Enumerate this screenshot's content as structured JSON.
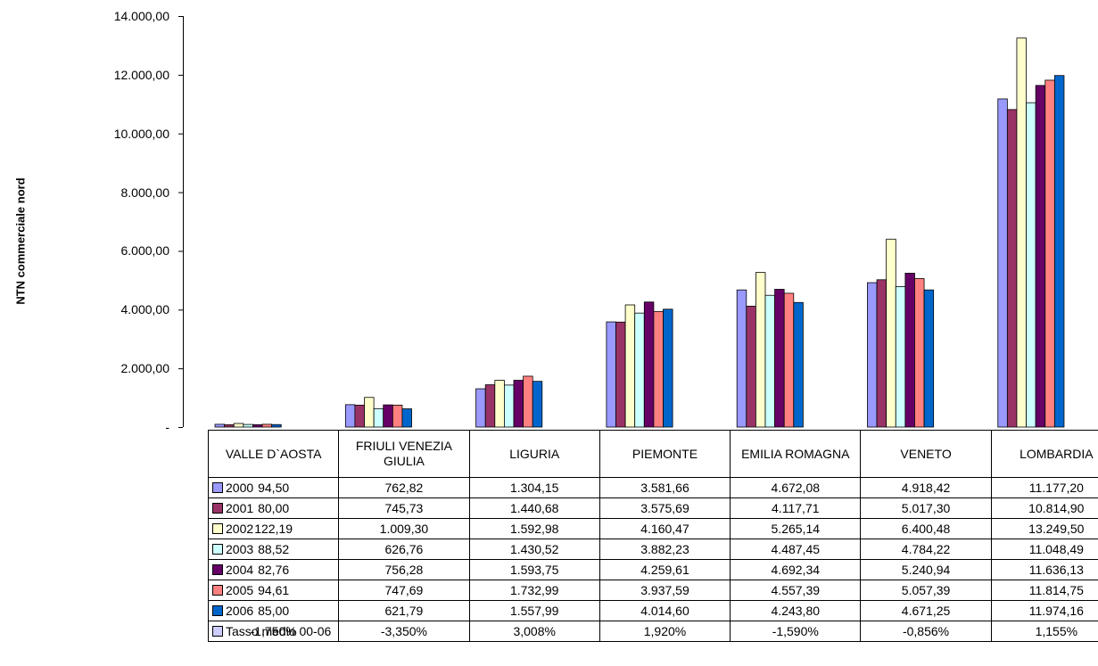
{
  "chart_data": {
    "type": "bar",
    "ylabel": "NTN commerciale nord",
    "ylim": [
      0,
      14000
    ],
    "ytick_labels": [
      "-",
      "2.000,00",
      "4.000,00",
      "6.000,00",
      "8.000,00",
      "10.000,00",
      "12.000,00",
      "14.000,00"
    ],
    "grid": false,
    "legend": "data-table",
    "categories": [
      "VALLE D`AOSTA",
      "FRIULI VENEZIA GIULIA",
      "LIGURIA",
      "PIEMONTE",
      "EMILIA ROMAGNA",
      "VENETO",
      "LOMBARDIA"
    ],
    "series": [
      {
        "name": "2000",
        "color": "#9999FF",
        "values": [
          94.5,
          762.82,
          1304.15,
          3581.66,
          4672.08,
          4918.42,
          11177.2
        ],
        "labels": [
          "94,50",
          "762,82",
          "1.304,15",
          "3.581,66",
          "4.672,08",
          "4.918,42",
          "11.177,20"
        ]
      },
      {
        "name": "2001",
        "color": "#993366",
        "values": [
          80.0,
          745.73,
          1440.68,
          3575.69,
          4117.71,
          5017.3,
          10814.9
        ],
        "labels": [
          "80,00",
          "745,73",
          "1.440,68",
          "3.575,69",
          "4.117,71",
          "5.017,30",
          "10.814,90"
        ]
      },
      {
        "name": "2002",
        "color": "#FFFFCC",
        "values": [
          122.19,
          1009.3,
          1592.98,
          4160.47,
          5265.14,
          6400.48,
          13249.5
        ],
        "labels": [
          "122,19",
          "1.009,30",
          "1.592,98",
          "4.160,47",
          "5.265,14",
          "6.400,48",
          "13.249,50"
        ]
      },
      {
        "name": "2003",
        "color": "#CCFFFF",
        "values": [
          88.52,
          626.76,
          1430.52,
          3882.23,
          4487.45,
          4784.22,
          11048.49
        ],
        "labels": [
          "88,52",
          "626,76",
          "1.430,52",
          "3.882,23",
          "4.487,45",
          "4.784,22",
          "11.048,49"
        ]
      },
      {
        "name": "2004",
        "color": "#660066",
        "values": [
          82.76,
          756.28,
          1593.75,
          4259.61,
          4692.34,
          5240.94,
          11636.13
        ],
        "labels": [
          "82,76",
          "756,28",
          "1.593,75",
          "4.259,61",
          "4.692,34",
          "5.240,94",
          "11.636,13"
        ]
      },
      {
        "name": "2005",
        "color": "#FF8080",
        "values": [
          94.61,
          747.69,
          1732.99,
          3937.59,
          4557.39,
          5057.39,
          11814.75
        ],
        "labels": [
          "94,61",
          "747,69",
          "1.732,99",
          "3.937,59",
          "4.557,39",
          "5.057,39",
          "11.814,75"
        ]
      },
      {
        "name": "2006",
        "color": "#0066CC",
        "values": [
          85.0,
          621.79,
          1557.99,
          4014.6,
          4243.8,
          4671.25,
          11974.16
        ],
        "labels": [
          "85,00",
          "621,79",
          "1.557,99",
          "4.014,60",
          "4.243,80",
          "4.671,25",
          "11.974,16"
        ]
      }
    ],
    "extra_row": {
      "name": "Tasso medio 00-06",
      "color": "#CCCCFF",
      "labels": [
        "-1,750%",
        "-3,350%",
        "3,008%",
        "1,920%",
        "-1,590%",
        "-0,856%",
        "1,155%"
      ]
    }
  }
}
